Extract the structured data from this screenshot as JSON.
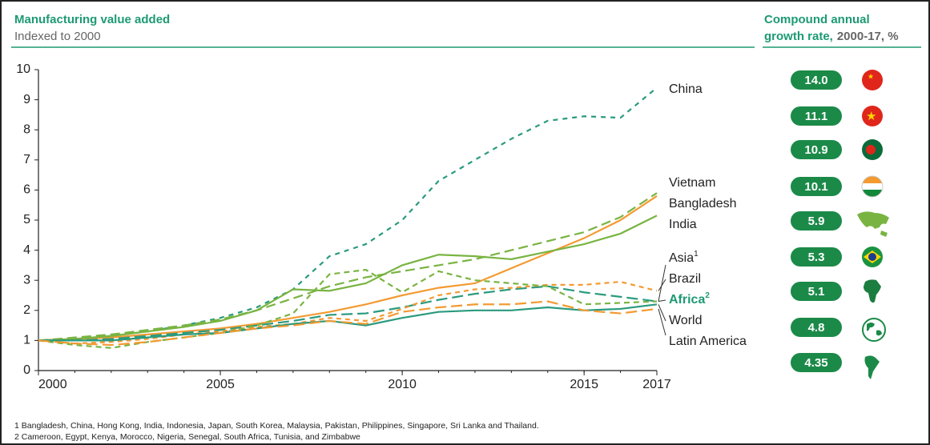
{
  "chart_data": {
    "type": "line",
    "title": "Manufacturing value added",
    "subtitle": "Indexed to 2000",
    "x": [
      2000,
      2001,
      2002,
      2003,
      2004,
      2005,
      2006,
      2007,
      2008,
      2009,
      2010,
      2011,
      2012,
      2013,
      2014,
      2015,
      2016,
      2017
    ],
    "xlim": [
      2000,
      2017
    ],
    "xticks": [
      2000,
      2005,
      2010,
      2015,
      2017
    ],
    "ylim": [
      0,
      10
    ],
    "yticks": [
      0,
      1,
      2,
      3,
      4,
      5,
      6,
      7,
      8,
      9,
      10
    ],
    "series": [
      {
        "name": "China",
        "color": "#2a9a7e",
        "dash": "6,6",
        "values": [
          1,
          1.05,
          1.15,
          1.3,
          1.5,
          1.75,
          2.1,
          2.7,
          3.8,
          4.2,
          5.0,
          6.3,
          7.0,
          7.7,
          8.3,
          8.45,
          8.4,
          9.4
        ]
      },
      {
        "name": "Vietnam",
        "color": "#79b442",
        "dash": "12,6",
        "values": [
          1,
          1.1,
          1.2,
          1.35,
          1.5,
          1.7,
          2.0,
          2.4,
          2.8,
          3.1,
          3.3,
          3.5,
          3.7,
          4.0,
          4.3,
          4.6,
          5.1,
          5.9
        ]
      },
      {
        "name": "Bangladesh",
        "color": "#f39a32",
        "dash": "",
        "values": [
          1,
          1.05,
          1.1,
          1.2,
          1.3,
          1.4,
          1.55,
          1.75,
          1.95,
          2.2,
          2.5,
          2.75,
          2.9,
          3.4,
          3.9,
          4.4,
          5.0,
          5.8
        ]
      },
      {
        "name": "India",
        "color": "#79b442",
        "dash": "",
        "values": [
          1,
          1.05,
          1.15,
          1.3,
          1.45,
          1.65,
          2.0,
          2.7,
          2.65,
          2.9,
          3.5,
          3.85,
          3.8,
          3.7,
          3.95,
          4.2,
          4.55,
          5.15
        ]
      },
      {
        "name": "Asia",
        "note": "1",
        "color": "#2a9a7e",
        "dash": "14,6",
        "values": [
          1,
          1.0,
          1.05,
          1.15,
          1.25,
          1.35,
          1.5,
          1.65,
          1.85,
          1.9,
          2.1,
          2.35,
          2.55,
          2.7,
          2.8,
          2.6,
          2.45,
          2.3
        ]
      },
      {
        "name": "Brazil",
        "color": "#f39a32",
        "dash": "6,5",
        "values": [
          1,
          0.9,
          0.95,
          1.05,
          1.2,
          1.3,
          1.45,
          1.55,
          1.75,
          1.65,
          2.05,
          2.5,
          2.7,
          2.75,
          2.85,
          2.85,
          2.95,
          2.65
        ]
      },
      {
        "name": "Africa",
        "note": "2",
        "color": "#79b442",
        "dash": "7,5",
        "values": [
          1,
          0.85,
          0.75,
          0.95,
          1.1,
          1.25,
          1.5,
          1.9,
          3.2,
          3.35,
          2.6,
          3.3,
          3.0,
          2.9,
          2.8,
          2.2,
          2.25,
          2.3
        ]
      },
      {
        "name": "World",
        "color": "#2a9a7e",
        "dash": "",
        "values": [
          1,
          1.0,
          1.0,
          1.1,
          1.2,
          1.25,
          1.4,
          1.55,
          1.65,
          1.5,
          1.75,
          1.95,
          2.0,
          2.0,
          2.1,
          2.0,
          2.05,
          2.2
        ]
      },
      {
        "name": "Latin America",
        "color": "#f39a32",
        "dash": "14,6",
        "values": [
          1,
          0.9,
          0.85,
          0.95,
          1.1,
          1.25,
          1.4,
          1.5,
          1.65,
          1.55,
          1.95,
          2.1,
          2.2,
          2.2,
          2.3,
          2.0,
          1.9,
          2.05
        ]
      }
    ]
  },
  "growth_rates": {
    "title": [
      "Compound annual",
      "growth rate,"
    ],
    "unit": "2000-17, %",
    "values": [
      14,
      11.1,
      10.9,
      10.1,
      5.9,
      5.3,
      5.1,
      4.8,
      4.35
    ],
    "value_labels": [
      "14.0",
      "11.1",
      "10.9",
      "10.1",
      "5.9",
      "5.3",
      "5.1",
      "4.8",
      "4.35"
    ]
  },
  "footnotes": [
    "1 Bangladesh, China, Hong Kong, India, Indonesia, Japan, South Korea, Malaysia, Pakistan, Philippines, Singapore, Sri Lanka and Thailand.",
    "2 Cameroon, Egypt, Kenya, Morocco, Nigeria, Senegal, South Africa, Tunisia, and Zimbabwe"
  ]
}
